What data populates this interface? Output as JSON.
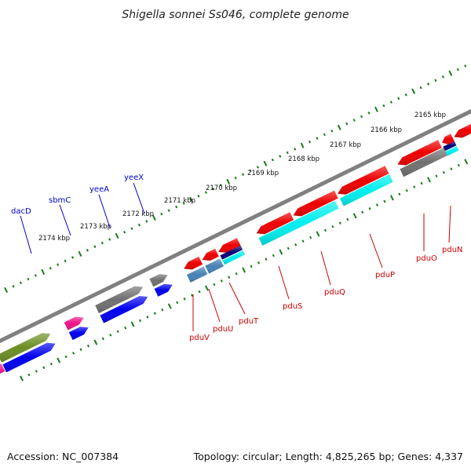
{
  "title": "Shigella sonnei Ss046, complete genome",
  "footer": {
    "accession": "Accession: NC_007384",
    "summary": "Topology: circular; Length: 4,825,265 bp; Genes: 4,337"
  },
  "colors": {
    "backbone": "#808080",
    "tick_major": "#1a7a1a",
    "tick_minor": "#1a7a1a",
    "label_forward": "#0000cc",
    "label_reverse": "#cc0000",
    "red": "#ee0000",
    "magenta": "#ee1188",
    "gray": "#707070",
    "blue": "#0000ee",
    "olive": "#6b8e23",
    "cyan": "#00eeee",
    "navy": "#000077",
    "steel": "#4682b4"
  },
  "tick_labels": [
    "2165 kbp",
    "2166 kbp",
    "2167 kbp",
    "2168 kbp",
    "2169 kbp",
    "2170 kbp",
    "2171 kbp",
    "2172 kbp",
    "2173 kbp",
    "2174 kbp"
  ],
  "forward_labels": [
    "dacD",
    "sbmC",
    "yeeA",
    "yeeX"
  ],
  "reverse_labels": [
    "pduV",
    "pduU",
    "pduT",
    "pduS",
    "pduQ",
    "pduP",
    "pduO",
    "pduN"
  ]
}
